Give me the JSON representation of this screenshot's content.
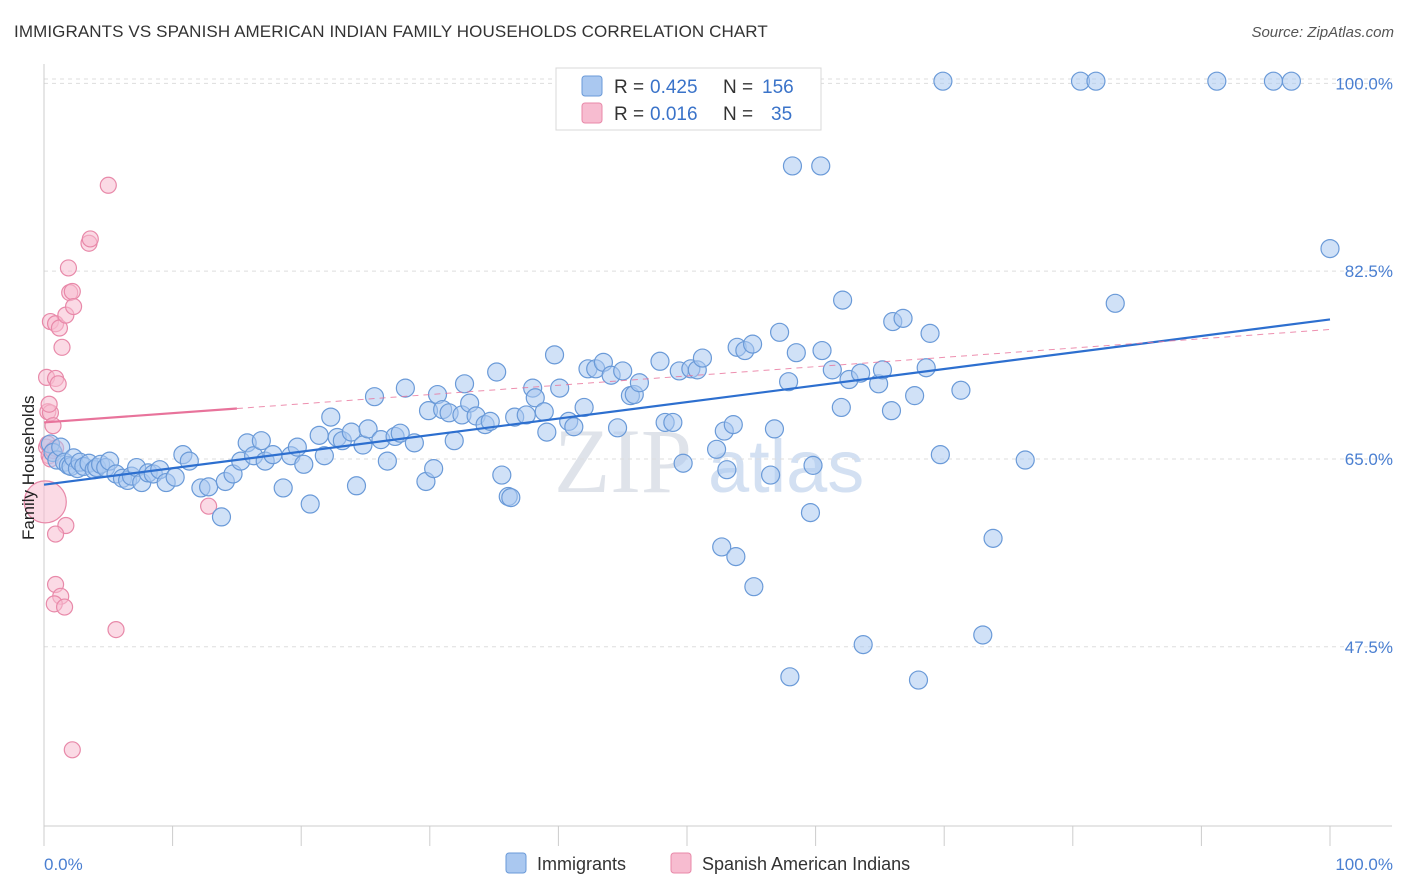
{
  "title": "IMMIGRANTS VS SPANISH AMERICAN INDIAN FAMILY HOUSEHOLDS CORRELATION CHART",
  "source": "Source: ZipAtlas.com",
  "watermark": {
    "zip": "ZIP",
    "atlas": "atlas"
  },
  "legend": {
    "r_label": "R =",
    "n_label": "N =",
    "series": [
      {
        "r": "0.425",
        "n": "156"
      },
      {
        "r": "0.016",
        "n": "35"
      }
    ]
  },
  "colors": {
    "blue_fill": "#aac8f0",
    "blue_stroke": "#6a9ad8",
    "blue_line": "#2d6fcf",
    "pink_fill": "#f7bcd0",
    "pink_stroke": "#e889a9",
    "pink_line": "#e8739b",
    "tick_text": "#4a7fd1",
    "grid": "#dddddd"
  },
  "chart_data": {
    "type": "scatter",
    "title": "IMMIGRANTS VS SPANISH AMERICAN INDIAN FAMILY HOUSEHOLDS CORRELATION CHART",
    "xlabel": "",
    "ylabel": "Family Households",
    "xlim": [
      0,
      100
    ],
    "ylim": [
      30.8,
      101.8
    ],
    "x_tick_labels": [
      "0.0%",
      "100.0%"
    ],
    "y_ticks": [
      47.5,
      65.0,
      82.5,
      100.0
    ],
    "y_tick_labels": [
      "47.5%",
      "65.0%",
      "82.5%",
      "100.0%"
    ],
    "grid": true,
    "legend_position": "top-center",
    "series": [
      {
        "name": "Immigrants",
        "color": "#aac8f0",
        "trend": {
          "x": [
            0,
            100
          ],
          "y": [
            62.6,
            78.0
          ]
        },
        "points": [
          [
            0.5,
            66.4
          ],
          [
            0.7,
            65.6
          ],
          [
            1.0,
            64.9
          ],
          [
            1.3,
            66.1
          ],
          [
            1.6,
            64.7
          ],
          [
            1.9,
            64.4
          ],
          [
            2.1,
            64.3
          ],
          [
            2.3,
            65.1
          ],
          [
            2.6,
            64.1
          ],
          [
            2.8,
            64.7
          ],
          [
            3.1,
            64.3
          ],
          [
            3.5,
            64.6
          ],
          [
            3.9,
            64.0
          ],
          [
            4.1,
            64.2
          ],
          [
            4.4,
            64.5
          ],
          [
            4.8,
            64.2
          ],
          [
            5.1,
            64.8
          ],
          [
            5.6,
            63.6
          ],
          [
            6.1,
            63.2
          ],
          [
            6.5,
            63.0
          ],
          [
            6.8,
            63.4
          ],
          [
            7.2,
            64.2
          ],
          [
            7.6,
            62.8
          ],
          [
            8.1,
            63.7
          ],
          [
            8.5,
            63.6
          ],
          [
            9.0,
            64.0
          ],
          [
            9.5,
            62.8
          ],
          [
            10.2,
            63.3
          ],
          [
            10.8,
            65.4
          ],
          [
            11.3,
            64.8
          ],
          [
            12.2,
            62.3
          ],
          [
            12.8,
            62.4
          ],
          [
            13.8,
            59.6
          ],
          [
            14.1,
            62.9
          ],
          [
            14.7,
            63.6
          ],
          [
            15.3,
            64.8
          ],
          [
            15.8,
            66.5
          ],
          [
            16.3,
            65.3
          ],
          [
            16.9,
            66.7
          ],
          [
            17.2,
            64.8
          ],
          [
            17.8,
            65.4
          ],
          [
            18.6,
            62.3
          ],
          [
            19.2,
            65.3
          ],
          [
            19.7,
            66.1
          ],
          [
            20.2,
            64.5
          ],
          [
            20.7,
            60.8
          ],
          [
            21.4,
            67.2
          ],
          [
            21.8,
            65.3
          ],
          [
            22.3,
            68.9
          ],
          [
            22.8,
            67.0
          ],
          [
            23.2,
            66.7
          ],
          [
            23.9,
            67.5
          ],
          [
            24.3,
            62.5
          ],
          [
            24.8,
            66.3
          ],
          [
            25.2,
            67.8
          ],
          [
            25.7,
            70.8
          ],
          [
            26.2,
            66.8
          ],
          [
            26.7,
            64.8
          ],
          [
            27.3,
            67.1
          ],
          [
            27.7,
            67.4
          ],
          [
            28.1,
            71.6
          ],
          [
            28.8,
            66.5
          ],
          [
            29.7,
            62.9
          ],
          [
            29.9,
            69.5
          ],
          [
            30.3,
            64.1
          ],
          [
            30.6,
            71.0
          ],
          [
            31.0,
            69.6
          ],
          [
            31.5,
            69.3
          ],
          [
            31.9,
            66.7
          ],
          [
            32.5,
            69.1
          ],
          [
            32.7,
            72.0
          ],
          [
            33.1,
            70.2
          ],
          [
            33.6,
            69.0
          ],
          [
            34.3,
            68.2
          ],
          [
            34.7,
            68.5
          ],
          [
            35.2,
            73.1
          ],
          [
            35.6,
            63.5
          ],
          [
            36.6,
            68.9
          ],
          [
            37.5,
            69.1
          ],
          [
            38.0,
            71.6
          ],
          [
            38.2,
            70.7
          ],
          [
            38.9,
            69.4
          ],
          [
            39.1,
            67.5
          ],
          [
            39.7,
            74.7
          ],
          [
            40.1,
            71.6
          ],
          [
            40.8,
            68.5
          ],
          [
            41.2,
            68.0
          ],
          [
            42.0,
            69.8
          ],
          [
            42.3,
            73.4
          ],
          [
            42.9,
            73.4
          ],
          [
            43.5,
            74.0
          ],
          [
            44.1,
            72.8
          ],
          [
            44.6,
            67.9
          ],
          [
            45.0,
            73.2
          ],
          [
            45.6,
            70.9
          ],
          [
            45.9,
            71.0
          ],
          [
            46.3,
            72.1
          ],
          [
            47.9,
            74.1
          ],
          [
            48.3,
            68.4
          ],
          [
            48.9,
            68.4
          ],
          [
            49.4,
            73.2
          ],
          [
            49.7,
            64.6
          ],
          [
            50.3,
            73.4
          ],
          [
            50.8,
            73.3
          ],
          [
            51.2,
            74.4
          ],
          [
            52.3,
            65.9
          ],
          [
            52.9,
            67.6
          ],
          [
            53.1,
            64.0
          ],
          [
            53.6,
            68.2
          ],
          [
            53.9,
            75.4
          ],
          [
            54.5,
            75.1
          ],
          [
            55.1,
            75.7
          ],
          [
            56.5,
            63.5
          ],
          [
            56.8,
            67.8
          ],
          [
            57.2,
            76.8
          ],
          [
            57.9,
            72.2
          ],
          [
            58.5,
            74.9
          ],
          [
            59.6,
            60.0
          ],
          [
            59.8,
            64.4
          ],
          [
            60.5,
            75.1
          ],
          [
            61.3,
            73.3
          ],
          [
            62.0,
            69.8
          ],
          [
            62.1,
            79.8
          ],
          [
            62.6,
            72.4
          ],
          [
            63.5,
            73.0
          ],
          [
            64.9,
            72.0
          ],
          [
            65.2,
            73.3
          ],
          [
            65.9,
            69.5
          ],
          [
            66.0,
            77.8
          ],
          [
            66.8,
            78.1
          ],
          [
            67.7,
            70.9
          ],
          [
            68.6,
            73.5
          ],
          [
            68.9,
            76.7
          ],
          [
            69.7,
            65.4
          ],
          [
            71.3,
            71.4
          ],
          [
            73.8,
            57.6
          ],
          [
            76.3,
            64.9
          ],
          [
            83.3,
            79.5
          ],
          [
            100.0,
            84.6
          ],
          [
            52.7,
            56.8
          ],
          [
            53.8,
            55.9
          ],
          [
            55.2,
            53.1
          ],
          [
            58.0,
            44.7
          ],
          [
            63.7,
            47.7
          ],
          [
            68.0,
            44.4
          ],
          [
            73.0,
            48.6
          ],
          [
            58.2,
            92.3
          ],
          [
            60.4,
            92.3
          ],
          [
            69.9,
            100.2
          ],
          [
            80.6,
            100.2
          ],
          [
            81.8,
            100.2
          ],
          [
            91.2,
            100.2
          ],
          [
            95.6,
            100.2
          ],
          [
            97.0,
            100.2
          ],
          [
            36.1,
            61.5
          ],
          [
            36.3,
            61.4
          ]
        ]
      },
      {
        "name": "Spanish American Indians",
        "color": "#f7bcd0",
        "trend": {
          "x": [
            0,
            15
          ],
          "y": [
            68.4,
            69.7
          ]
        },
        "points": [
          [
            0.1,
            61.0
          ],
          [
            0.2,
            66.1
          ],
          [
            0.3,
            66.4
          ],
          [
            0.4,
            65.3
          ],
          [
            0.5,
            65.0
          ],
          [
            0.7,
            65.8
          ],
          [
            0.9,
            66.0
          ],
          [
            0.3,
            69.4
          ],
          [
            0.5,
            69.3
          ],
          [
            0.4,
            70.1
          ],
          [
            0.7,
            68.1
          ],
          [
            0.2,
            72.6
          ],
          [
            0.9,
            72.5
          ],
          [
            1.1,
            72.0
          ],
          [
            0.5,
            77.8
          ],
          [
            0.9,
            77.6
          ],
          [
            1.2,
            77.2
          ],
          [
            1.4,
            75.4
          ],
          [
            1.7,
            78.4
          ],
          [
            2.0,
            80.5
          ],
          [
            2.2,
            80.6
          ],
          [
            1.9,
            82.8
          ],
          [
            2.3,
            79.2
          ],
          [
            3.5,
            85.1
          ],
          [
            3.6,
            85.5
          ],
          [
            5.0,
            90.5
          ],
          [
            1.7,
            58.8
          ],
          [
            0.9,
            58.0
          ],
          [
            0.9,
            53.3
          ],
          [
            1.3,
            52.2
          ],
          [
            0.8,
            51.5
          ],
          [
            1.6,
            51.2
          ],
          [
            5.6,
            49.1
          ],
          [
            2.2,
            37.9
          ],
          [
            12.8,
            60.6
          ]
        ]
      }
    ]
  }
}
